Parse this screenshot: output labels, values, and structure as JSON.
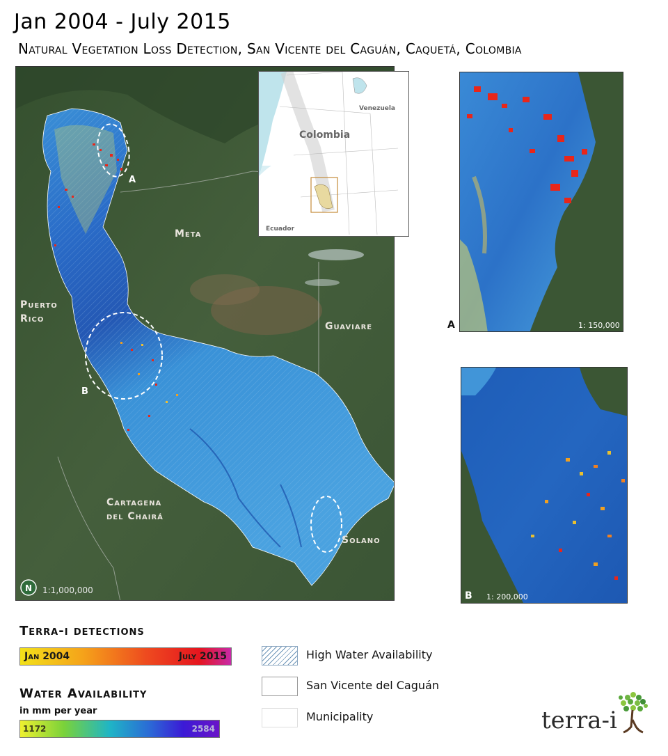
{
  "title": "Jan 2004 - July 2015",
  "subtitle": "Natural Vegetation Loss Detection, San Vicente del Caguán, Caquetá, Colombia",
  "main_map": {
    "regions": {
      "meta": "Meta",
      "puerto_rico_1": "Puerto",
      "puerto_rico_2": "Rico",
      "guaviare": "Guaviare",
      "cartagena_1": "Cartagena",
      "cartagena_2": "del Chairá",
      "solano": "Solano"
    },
    "markers": {
      "a": "A",
      "b": "B"
    },
    "scale": "1:1,000,000",
    "north_symbol": "N"
  },
  "locator_map": {
    "country": "Colombia",
    "neighbor_1": "Venezuela",
    "neighbor_2": "Ecuador"
  },
  "inset_a": {
    "label": "A",
    "scale": "1: 150,000"
  },
  "inset_b": {
    "label": "B",
    "scale": "1: 200,000"
  },
  "legend": {
    "detections_title": "Terra-i detections",
    "detections_start": "Jan 2004",
    "detections_end": "July 2015",
    "water_title": "Water Availability",
    "water_unit": "in mm per year",
    "water_min": "1172",
    "water_max": "2584",
    "items": [
      {
        "label": "High Water Availability",
        "style": "hatched"
      },
      {
        "label": "San Vicente del Caguán",
        "style": "outline"
      },
      {
        "label": "Municipality",
        "style": "plain"
      }
    ]
  },
  "logo": {
    "text": "terra-i"
  },
  "colors": {
    "forest": "#3f5a38",
    "water_blue": "#2a86d4",
    "deep_blue": "#1a55b8",
    "detection_red": "#e8261a",
    "highlight_yellow": "#e6d84a"
  }
}
